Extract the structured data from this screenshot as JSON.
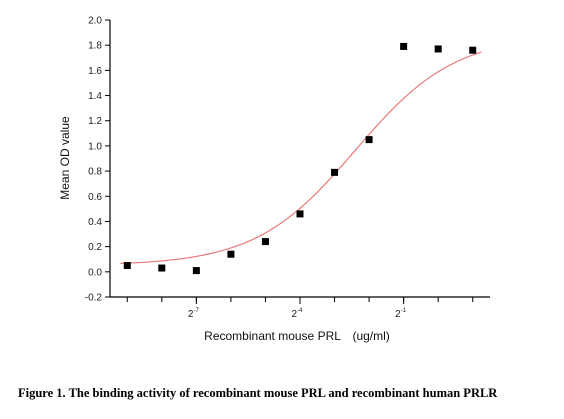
{
  "figure": {
    "caption": "Figure 1. The binding activity of recombinant mouse PRL and recombinant human PRLR"
  },
  "chart_data": {
    "type": "scatter",
    "xlabel": "Recombinant mouse PRL　(ug/ml)",
    "ylabel": "Mean OD value",
    "x_scale": "log2",
    "xlim": [
      -9.5,
      1.5
    ],
    "ylim": [
      -0.2,
      2.0
    ],
    "y_ticks": [
      -0.2,
      0.0,
      0.2,
      0.4,
      0.6,
      0.8,
      1.0,
      1.2,
      1.4,
      1.6,
      1.8,
      2.0
    ],
    "y_tick_labels": [
      "-0.2",
      "0.0",
      "0.2",
      "0.4",
      "0.6",
      "0.8",
      "1.0",
      "1.2",
      "1.4",
      "1.6",
      "1.8",
      "2.0"
    ],
    "x_minor_ticks": [
      -9,
      -8,
      -7,
      -6,
      -5,
      -4,
      -3,
      -2,
      -1,
      0,
      1
    ],
    "x_labeled_ticks": [
      {
        "x": -7,
        "base": "2",
        "exp": "-7"
      },
      {
        "x": -4,
        "base": "2",
        "exp": "-4"
      },
      {
        "x": -1,
        "base": "2",
        "exp": "-1"
      }
    ],
    "series": [
      {
        "marker": "square",
        "color": "#000000",
        "x": [
          -9,
          -8,
          -7,
          -6,
          -5,
          -4,
          -3,
          -2,
          -1,
          0,
          1
        ],
        "y": [
          0.05,
          0.03,
          0.01,
          0.14,
          0.24,
          0.46,
          0.79,
          1.05,
          1.79,
          1.77,
          1.76
        ]
      }
    ],
    "fit_curve": {
      "type": "4PL",
      "color": "#e87c7c",
      "bottom": 0.05,
      "top": 1.88,
      "midpoint_log2": -2.4,
      "slope": 1.0
    },
    "grid": false
  }
}
